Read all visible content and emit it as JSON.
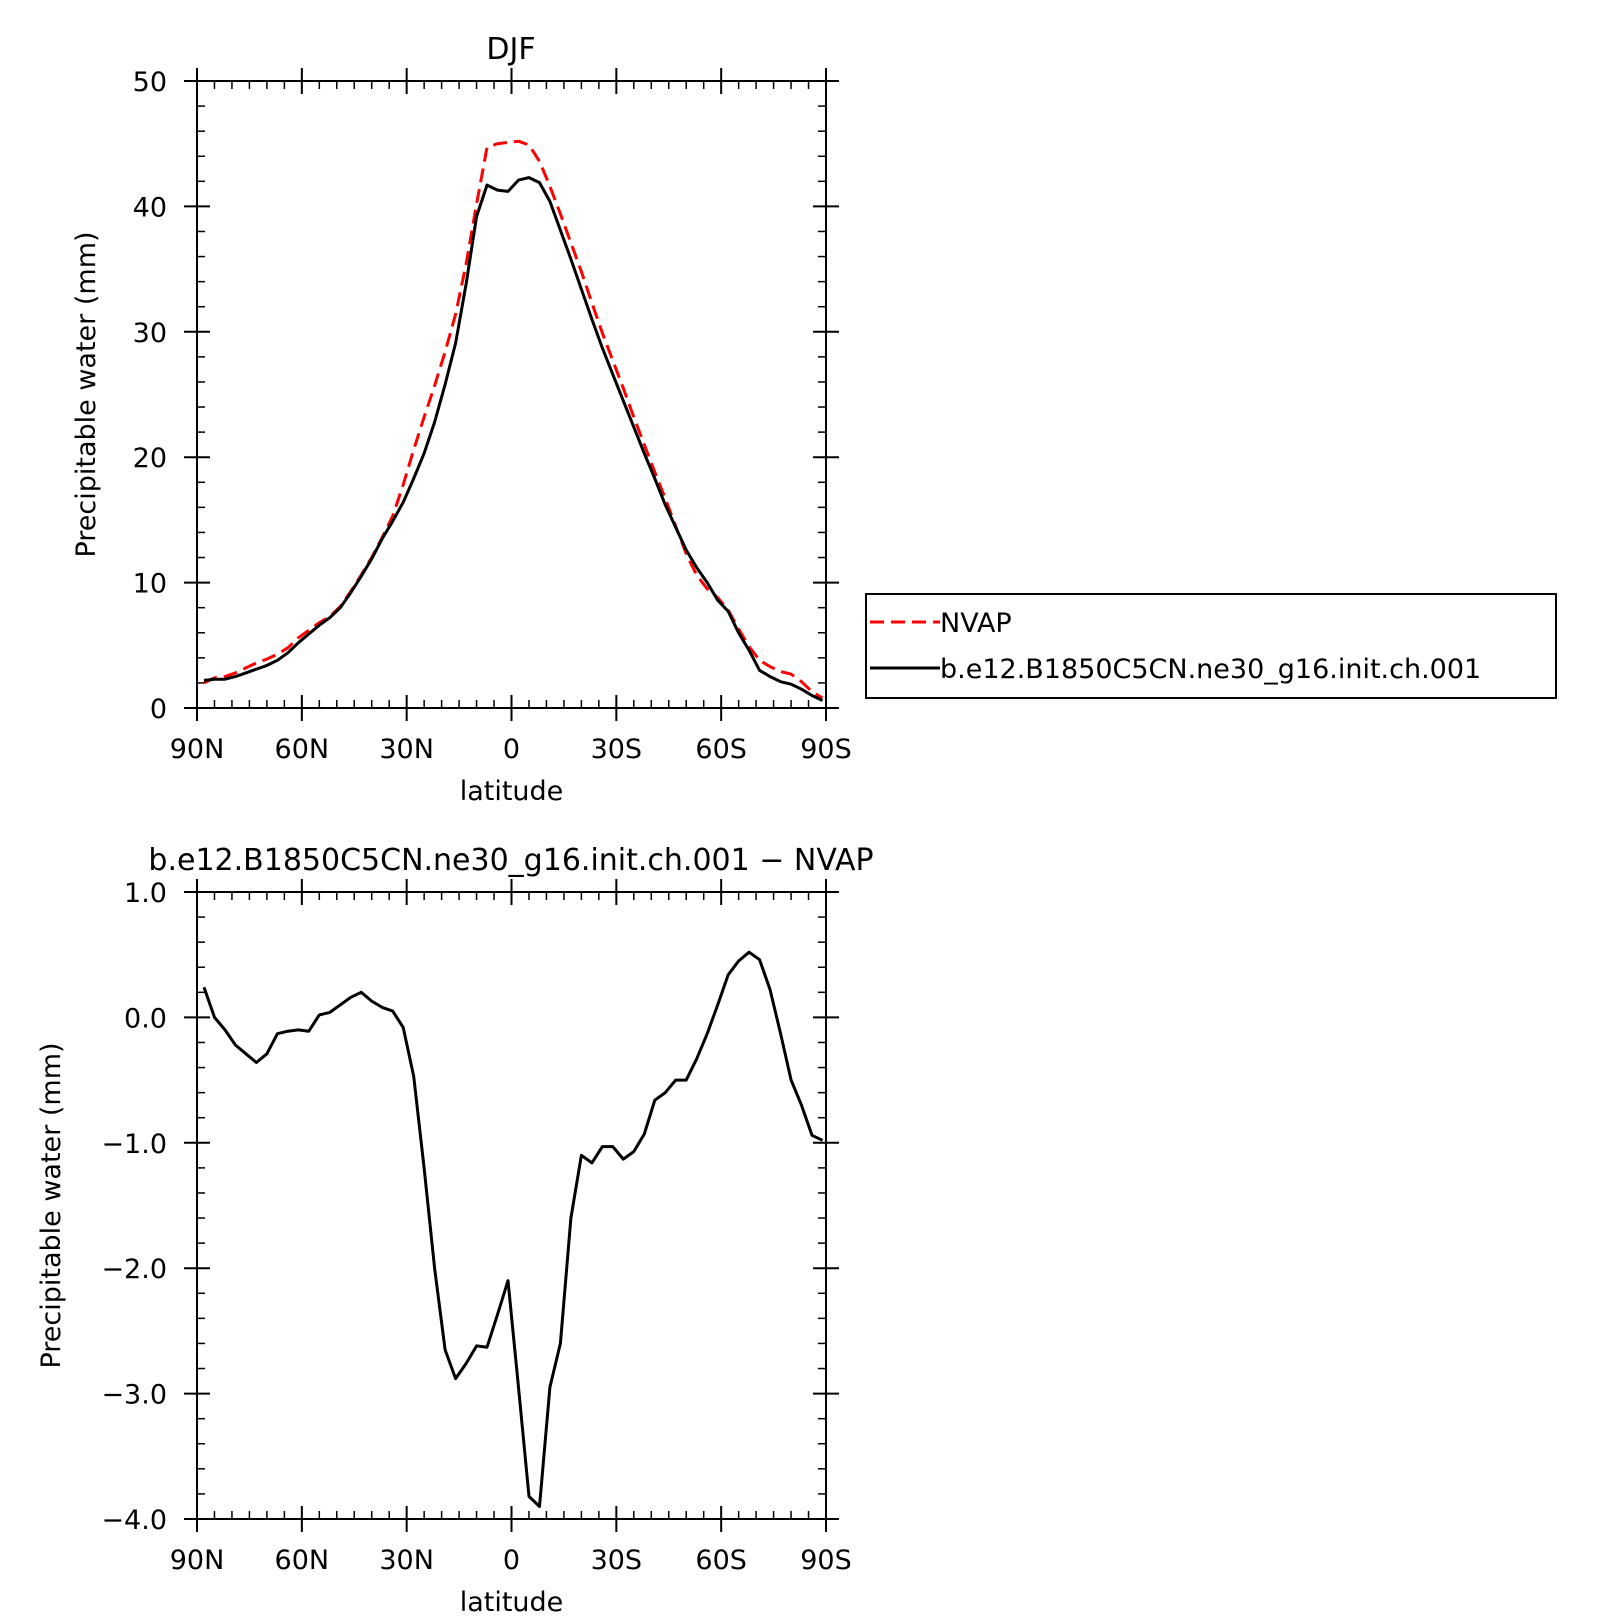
{
  "chart_data": [
    {
      "type": "line",
      "title": "DJF",
      "xlabel": "latitude",
      "ylabel": "Precipitable water (mm)",
      "xlim": [
        90,
        -90
      ],
      "ylim": [
        0,
        50
      ],
      "xticks": [
        90,
        60,
        30,
        0,
        -30,
        -60,
        -90
      ],
      "xtick_labels": [
        "90N",
        "60N",
        "30N",
        "0",
        "30S",
        "60S",
        "90S"
      ],
      "yticks": [
        0,
        10,
        20,
        30,
        40,
        50
      ],
      "ytick_labels": [
        "0",
        "10",
        "20",
        "30",
        "40",
        "50"
      ],
      "legend_position": "right",
      "x": [
        88,
        85,
        82,
        79,
        76,
        73,
        70,
        67,
        64,
        61,
        58,
        55,
        52,
        49,
        46,
        43,
        40,
        37,
        34,
        31,
        28,
        25,
        22,
        19,
        16,
        13,
        10,
        7,
        4,
        1,
        -2,
        -5,
        -8,
        -11,
        -14,
        -17,
        -20,
        -23,
        -26,
        -29,
        -32,
        -35,
        -38,
        -41,
        -44,
        -47,
        -50,
        -53,
        -56,
        -59,
        -62,
        -65,
        -68,
        -71,
        -74,
        -77,
        -80,
        -83,
        -86,
        -89
      ],
      "series": [
        {
          "name": "NVAP",
          "color": "#ff0000",
          "dash": "dashed",
          "values": [
            2.0,
            2.4,
            2.5,
            2.8,
            3.2,
            3.6,
            3.9,
            4.3,
            4.8,
            5.6,
            6.2,
            6.8,
            7.3,
            8.1,
            9.3,
            10.6,
            12.0,
            13.6,
            15.3,
            17.8,
            20.6,
            23.2,
            25.7,
            28.4,
            31.4,
            35.4,
            40.2,
            44.7,
            45.0,
            45.1,
            45.2,
            44.9,
            43.6,
            41.6,
            39.4,
            37.1,
            34.8,
            32.3,
            29.9,
            27.7,
            25.5,
            23.2,
            21.0,
            18.8,
            16.7,
            14.5,
            12.3,
            10.6,
            9.5,
            8.8,
            7.8,
            6.3,
            4.9,
            3.8,
            3.3,
            2.9,
            2.7,
            2.1,
            1.3,
            0.8
          ]
        },
        {
          "name": "b.e12.B1850C5CN.ne30_g16.init.ch.001",
          "color": "#000000",
          "dash": "solid",
          "values": [
            2.2,
            2.3,
            2.3,
            2.5,
            2.8,
            3.1,
            3.4,
            3.8,
            4.4,
            5.2,
            5.9,
            6.6,
            7.2,
            8.0,
            9.2,
            10.5,
            11.9,
            13.5,
            14.9,
            16.4,
            18.3,
            20.3,
            22.8,
            25.8,
            29.1,
            33.8,
            39.2,
            41.7,
            41.3,
            41.2,
            42.1,
            42.3,
            41.9,
            40.4,
            38.1,
            35.8,
            33.4,
            31.0,
            28.7,
            26.6,
            24.5,
            22.4,
            20.3,
            18.3,
            16.2,
            14.4,
            12.6,
            11.2,
            10.0,
            8.6,
            7.7,
            6.0,
            4.6,
            3.0,
            2.5,
            2.1,
            1.9,
            1.5,
            1.0,
            0.6
          ]
        }
      ]
    },
    {
      "type": "line",
      "title": "b.e12.B1850C5CN.ne30_g16.init.ch.001 − NVAP",
      "xlabel": "latitude",
      "ylabel": "Precipitable water (mm)",
      "xlim": [
        90,
        -90
      ],
      "ylim": [
        -4.0,
        1.0
      ],
      "xticks": [
        90,
        60,
        30,
        0,
        -30,
        -60,
        -90
      ],
      "xtick_labels": [
        "90N",
        "60N",
        "30N",
        "0",
        "30S",
        "60S",
        "90S"
      ],
      "yticks": [
        1.0,
        0.0,
        -1.0,
        -2.0,
        -3.0,
        -4.0
      ],
      "ytick_labels": [
        "1.0",
        "0.0",
        "−1.0",
        "−2.0",
        "−3.0",
        "−4.0"
      ],
      "x": [
        88,
        85,
        82,
        79,
        76,
        73,
        70,
        67,
        64,
        61,
        58,
        55,
        52,
        49,
        46,
        43,
        40,
        37,
        34,
        31,
        28,
        25,
        22,
        19,
        16,
        13,
        10,
        7,
        4,
        1,
        -2,
        -5,
        -8,
        -11,
        -14,
        -17,
        -20,
        -23,
        -26,
        -29,
        -32,
        -35,
        -38,
        -41,
        -44,
        -47,
        -50,
        -53,
        -56,
        -59,
        -62,
        -65,
        -68,
        -71,
        -74,
        -77,
        -80,
        -83,
        -86,
        -89
      ],
      "series": [
        {
          "name": "",
          "color": "#000000",
          "dash": "solid",
          "values": [
            0.24,
            0.0,
            -0.1,
            -0.22,
            -0.29,
            -0.36,
            -0.29,
            -0.13,
            -0.11,
            -0.1,
            -0.11,
            0.02,
            0.04,
            0.1,
            0.16,
            0.2,
            0.13,
            0.08,
            0.05,
            -0.08,
            -0.47,
            -1.2,
            -2.0,
            -2.65,
            -2.88,
            -2.76,
            -2.62,
            -2.63,
            -2.37,
            -2.1,
            -2.95,
            -3.82,
            -3.9,
            -2.95,
            -2.6,
            -1.6,
            -1.1,
            -1.16,
            -1.03,
            -1.03,
            -1.13,
            -1.07,
            -0.93,
            -0.66,
            -0.6,
            -0.5,
            -0.5,
            -0.33,
            -0.13,
            0.1,
            0.34,
            0.45,
            0.52,
            0.46,
            0.22,
            -0.13,
            -0.5,
            -0.7,
            -0.94,
            -0.98
          ]
        }
      ]
    }
  ]
}
